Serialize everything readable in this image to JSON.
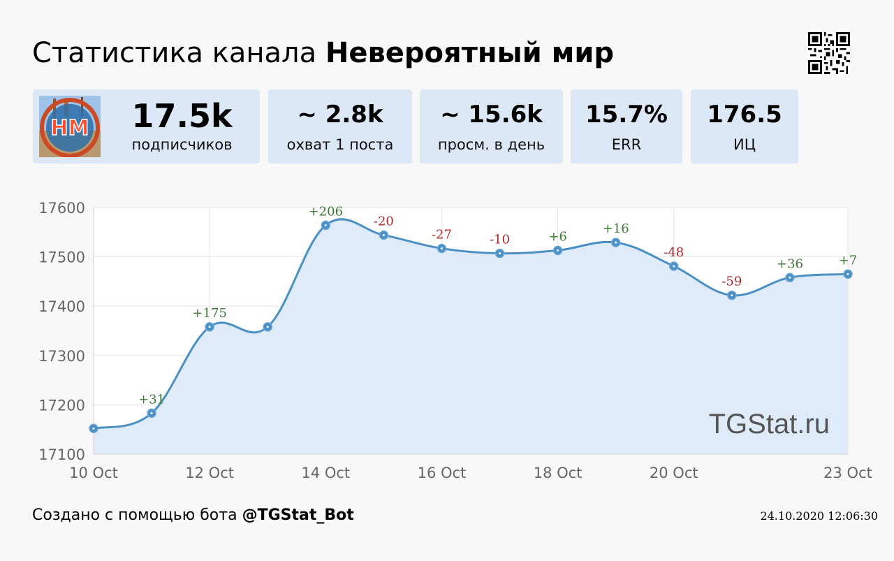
{
  "header": {
    "title_prefix": "Статистика канала",
    "channel_name": "Невероятный мир"
  },
  "stats": [
    {
      "value": "17.5k",
      "label": "подписчиков"
    },
    {
      "value": "~ 2.8k",
      "label": "охват 1 поста"
    },
    {
      "value": "~ 15.6k",
      "label": "просм. в день"
    },
    {
      "value": "15.7%",
      "label": "ERR"
    },
    {
      "value": "176.5",
      "label": "ИЦ"
    }
  ],
  "avatar": {
    "text": "НМ",
    "icon": "channel-avatar-icon"
  },
  "qr": {
    "icon": "qr-code-icon"
  },
  "chart_data": {
    "type": "area",
    "x": [
      "10 Oct",
      "11 Oct",
      "12 Oct",
      "13 Oct",
      "14 Oct",
      "15 Oct",
      "16 Oct",
      "17 Oct",
      "18 Oct",
      "19 Oct",
      "20 Oct",
      "21 Oct",
      "22 Oct",
      "23 Oct"
    ],
    "xtick_labels": [
      "10 Oct",
      "12 Oct",
      "14 Oct",
      "16 Oct",
      "18 Oct",
      "20 Oct",
      "23 Oct"
    ],
    "series": [
      {
        "values": [
          17152,
          17183,
          17358,
          17358,
          17564,
          17544,
          17517,
          17507,
          17513,
          17529,
          17481,
          17422,
          17458,
          17465
        ],
        "changes": [
          null,
          "+31",
          "+175",
          null,
          "+206",
          "-20",
          "-27",
          "-10",
          "+6",
          "+16",
          "-48",
          "-59",
          "+36",
          "+7"
        ]
      }
    ],
    "ylim": [
      17100,
      17600
    ],
    "yticks": [
      17100,
      17200,
      17300,
      17400,
      17500,
      17600
    ],
    "grid": true,
    "watermark": "TGStat.ru",
    "colors": {
      "line": "#4a90c4",
      "fill": "#e0ebfa",
      "positive": "#3d7a35",
      "negative": "#b02a2a"
    }
  },
  "footer": {
    "prefix": "Создано с помощью бота",
    "bot": "@TGStat_Bot",
    "timestamp": "24.10.2020 12:06:30"
  }
}
